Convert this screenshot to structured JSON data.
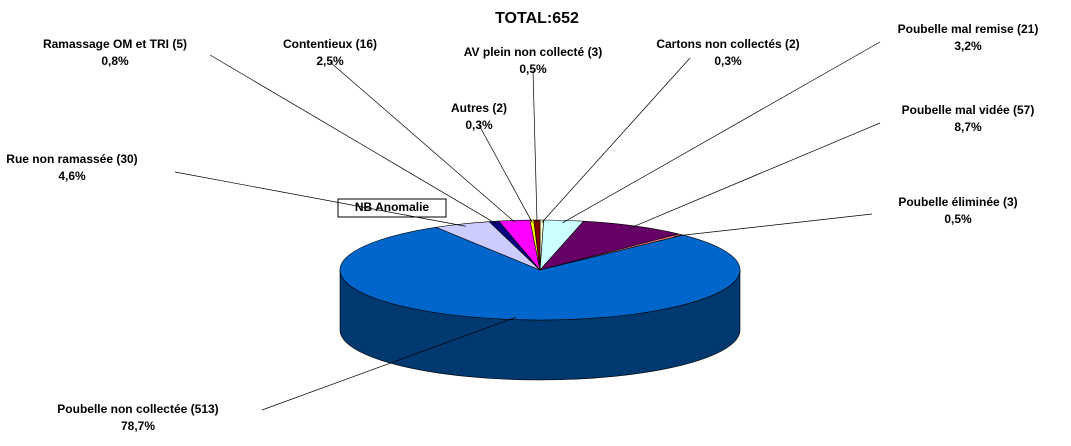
{
  "chart_data": {
    "type": "pie3d",
    "title": "TOTAL:652",
    "name": "NB Anomalie",
    "categories": [
      "Cartons non collectés (2)",
      "Poubelle mal remise (21)",
      "Poubelle mal vidée (57)",
      "Poubelle éliminée (3)",
      "Poubelle non collectée (513)",
      "Rue non ramassée (30)",
      "Ramassage OM et TRI (5)",
      "Contentieux (16)",
      "Autres (2)",
      "AV plein non collecté (3)"
    ],
    "values": [
      0.3,
      3.2,
      8.7,
      0.5,
      78.7,
      4.6,
      0.8,
      2.5,
      0.3,
      0.5
    ],
    "value_labels": [
      "0,3%",
      "3,2%",
      "8,7%",
      "0,5%",
      "78,7%",
      "4,6%",
      "0,8%",
      "2,5%",
      "0,3%",
      "0,5%"
    ],
    "colors": [
      "#ffffcc",
      "#ccffff",
      "#660066",
      "#ff8080",
      "#0066cc",
      "#ccccff",
      "#000080",
      "#ff00ff",
      "#ffff00",
      "#800000"
    ]
  }
}
